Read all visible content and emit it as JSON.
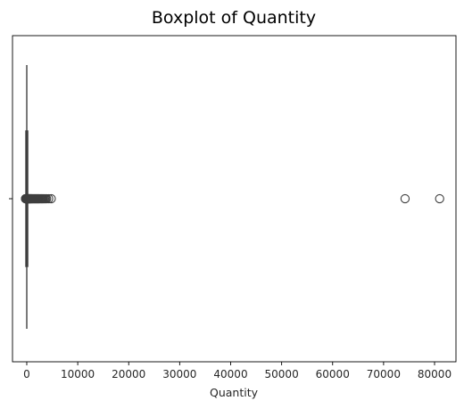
{
  "chart_data": {
    "type": "boxplot",
    "title": "Boxplot of Quantity",
    "xlabel": "Quantity",
    "ylabel": "",
    "xlim": [
      -2800,
      84200
    ],
    "xticks": [
      0,
      10000,
      20000,
      30000,
      40000,
      50000,
      60000,
      70000,
      80000
    ],
    "grid": false,
    "orientation": "horizontal",
    "box": {
      "whisker_low": -10,
      "q1": 0,
      "median": 3,
      "q3": 10,
      "whisker_high": 25
    },
    "outliers": [
      -250,
      -230,
      -210,
      -190,
      -170,
      -150,
      -120,
      -100,
      -80,
      -60,
      -45,
      40,
      55,
      70,
      90,
      110,
      130,
      150,
      180,
      210,
      240,
      270,
      300,
      340,
      380,
      420,
      470,
      520,
      580,
      640,
      700,
      760,
      830,
      900,
      980,
      1060,
      1150,
      1250,
      1350,
      1450,
      1550,
      1650,
      1750,
      1850,
      1950,
      2050,
      2150,
      2250,
      2350,
      2450,
      2600,
      2750,
      2900,
      3000,
      3150,
      3300,
      3500,
      3700,
      3900,
      4300,
      4800,
      74215,
      80995
    ],
    "colors": {
      "box_fill": "#3274a1",
      "line": "#3f3f3f",
      "axis": "#000000"
    }
  }
}
